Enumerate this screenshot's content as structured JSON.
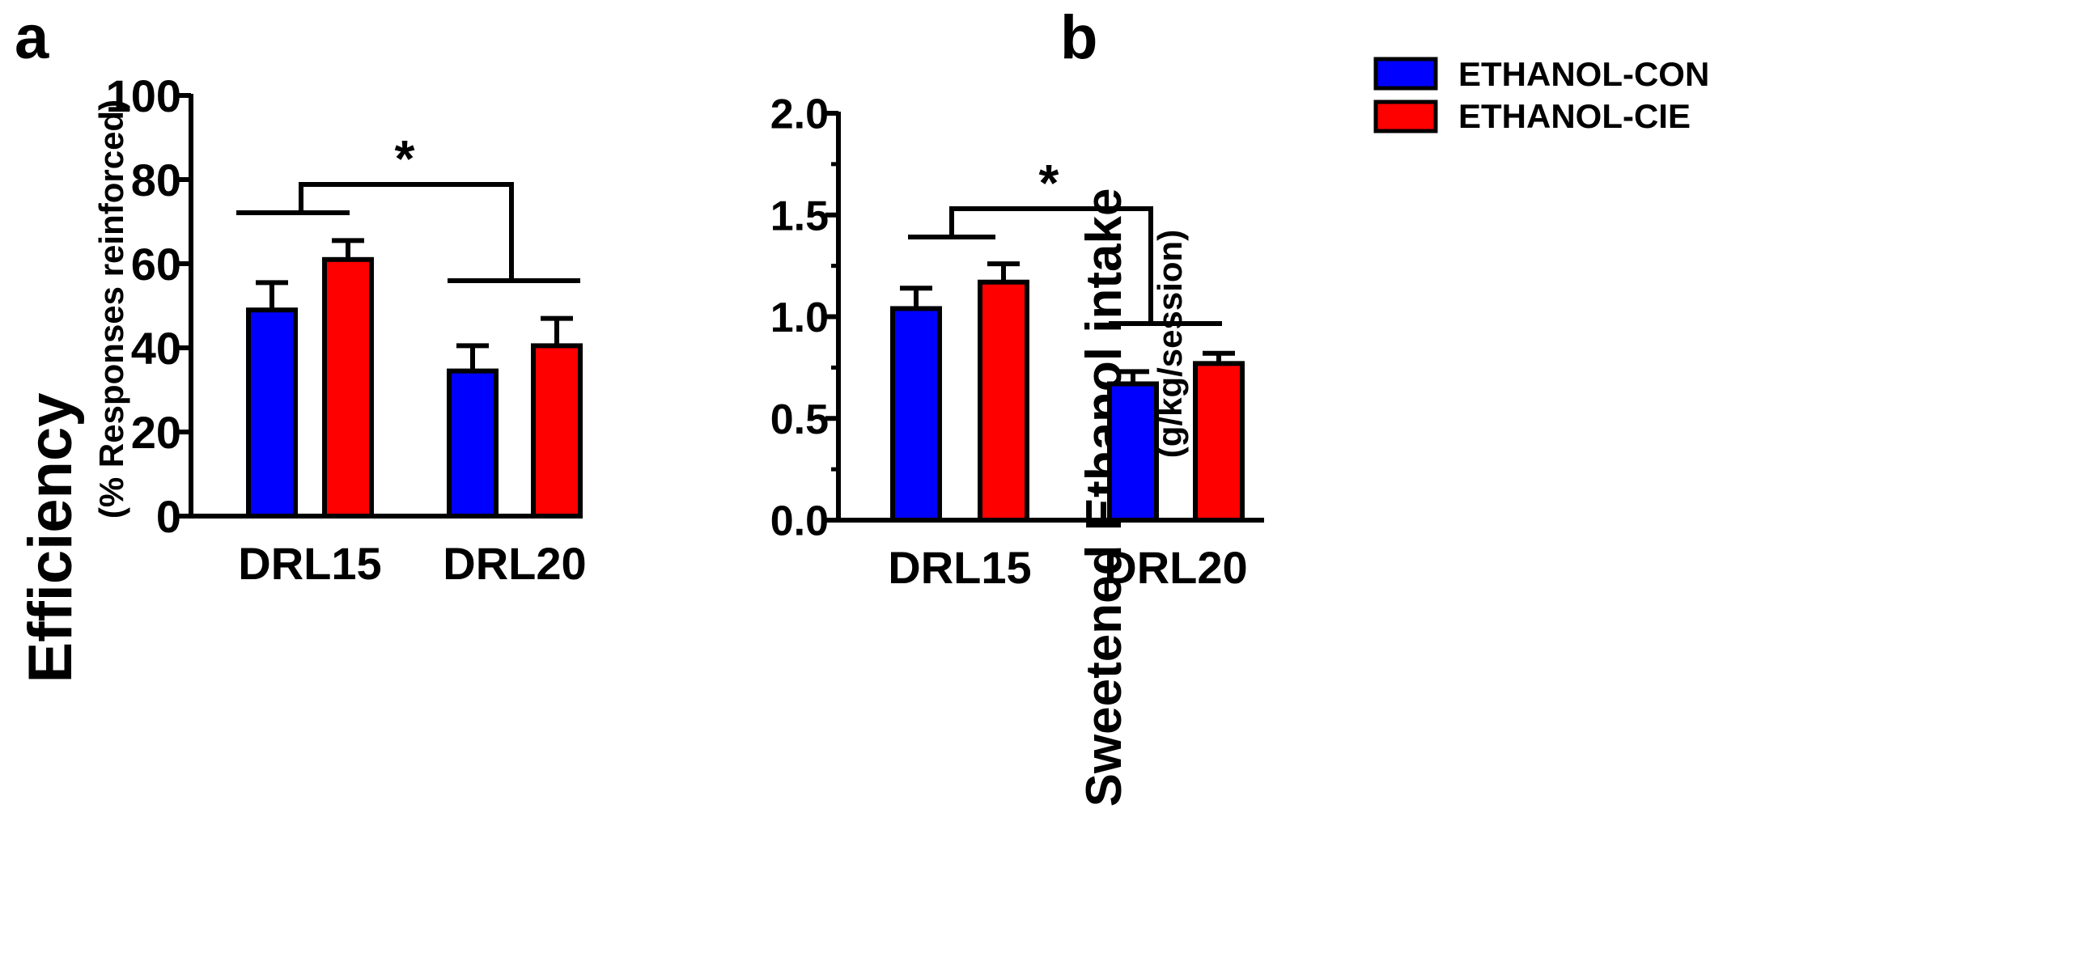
{
  "colors": {
    "con": "#0000ff",
    "cie": "#ff0000",
    "axis": "#000000"
  },
  "chart_data": [
    {
      "panel": "a",
      "type": "bar",
      "ylabel": "Efficiency",
      "ylabel_sub": "(% Responses reinforced)",
      "categories": [
        "DRL15",
        "DRL20"
      ],
      "ylim": [
        0,
        100
      ],
      "yticks": [
        0,
        20,
        40,
        60,
        80,
        100
      ],
      "ytick_labels": [
        "0",
        "20",
        "40",
        "60",
        "80",
        "100"
      ],
      "series": [
        {
          "name": "ETHANOL-CON",
          "values": [
            49,
            34.5
          ],
          "errors": [
            6.5,
            6
          ]
        },
        {
          "name": "ETHANOL-CIE",
          "values": [
            61,
            40.5
          ],
          "errors": [
            4.5,
            6.5
          ]
        }
      ],
      "significance": {
        "label": "*",
        "between": [
          "DRL15",
          "DRL20"
        ]
      }
    },
    {
      "panel": "b",
      "type": "bar",
      "ylabel": "Sweetened Ethanol intake",
      "ylabel_sub": "(g/kg/session)",
      "categories": [
        "DRL15",
        "DRL20"
      ],
      "ylim": [
        0,
        2.0
      ],
      "yticks": [
        0,
        0.5,
        1.0,
        1.5,
        2.0
      ],
      "ytick_labels": [
        "0.0",
        "0.5",
        "1.0",
        "1.5",
        "2.0"
      ],
      "legend": [
        "ETHANOL-CON",
        "ETHANOL-CIE"
      ],
      "legend_position": "top",
      "series": [
        {
          "name": "ETHANOL-CON",
          "values": [
            1.04,
            0.67
          ],
          "errors": [
            0.1,
            0.06
          ]
        },
        {
          "name": "ETHANOL-CIE",
          "values": [
            1.17,
            0.77
          ],
          "errors": [
            0.09,
            0.05
          ]
        }
      ],
      "significance": {
        "label": "*",
        "between": [
          "DRL15",
          "DRL20"
        ]
      }
    }
  ]
}
